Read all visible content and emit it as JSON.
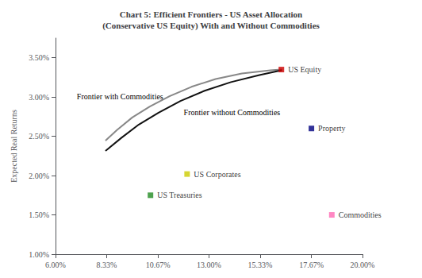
{
  "chart_data": {
    "type": "line",
    "title": "Chart 5: Efficient Frontiers - US Asset Allocation\n(Conservative US Equity) With and Without Commodities",
    "ylabel": "Expected Real Returns",
    "xlim": [
      0.06,
      0.2
    ],
    "ylim": [
      0.01,
      0.0375
    ],
    "xticks": [
      {
        "value": 0.06,
        "label": "6.00%"
      },
      {
        "value": 0.0833,
        "label": "8.33%"
      },
      {
        "value": 0.1067,
        "label": "10.67%"
      },
      {
        "value": 0.13,
        "label": "13.00%"
      },
      {
        "value": 0.1533,
        "label": "15.33%"
      },
      {
        "value": 0.1767,
        "label": "17.67%"
      },
      {
        "value": 0.2,
        "label": "20.00%"
      }
    ],
    "yticks": [
      {
        "value": 0.01,
        "label": "1.00%"
      },
      {
        "value": 0.015,
        "label": "1.50%"
      },
      {
        "value": 0.02,
        "label": "2.00%"
      },
      {
        "value": 0.025,
        "label": "2.50%"
      },
      {
        "value": 0.03,
        "label": "3.00%"
      },
      {
        "value": 0.035,
        "label": "3.50%"
      }
    ],
    "grid": false,
    "series": [
      {
        "name": "Frontier with Commodities",
        "type": "line",
        "color": "#888888",
        "x": [
          0.083,
          0.088,
          0.095,
          0.103,
          0.112,
          0.122,
          0.133,
          0.145,
          0.158,
          0.163
        ],
        "values": [
          0.0245,
          0.0258,
          0.0274,
          0.0288,
          0.0301,
          0.0313,
          0.0323,
          0.033,
          0.0334,
          0.0335
        ]
      },
      {
        "name": "Frontier without Commodities",
        "type": "line",
        "color": "#111111",
        "x": [
          0.083,
          0.09,
          0.098,
          0.107,
          0.117,
          0.128,
          0.14,
          0.153,
          0.163
        ],
        "values": [
          0.0232,
          0.0248,
          0.0265,
          0.028,
          0.0295,
          0.0308,
          0.0319,
          0.0328,
          0.0334
        ]
      },
      {
        "name": "US Equity",
        "type": "scatter",
        "marker": "square",
        "color": "#cc0000",
        "x": [
          0.163
        ],
        "values": [
          0.0335
        ]
      },
      {
        "name": "Property",
        "type": "scatter",
        "marker": "square",
        "color": "#000080",
        "x": [
          0.1767
        ],
        "values": [
          0.026
        ]
      },
      {
        "name": "US Corporates",
        "type": "scatter",
        "marker": "square",
        "color": "#cccc00",
        "x": [
          0.12
        ],
        "values": [
          0.0202
        ]
      },
      {
        "name": "US Treasuries",
        "type": "scatter",
        "marker": "square",
        "color": "#228B22",
        "x": [
          0.1033
        ],
        "values": [
          0.0175
        ]
      },
      {
        "name": "Commodities",
        "type": "scatter",
        "marker": "square",
        "color": "#ff69b4",
        "x": [
          0.186
        ],
        "values": [
          0.015
        ]
      }
    ]
  }
}
